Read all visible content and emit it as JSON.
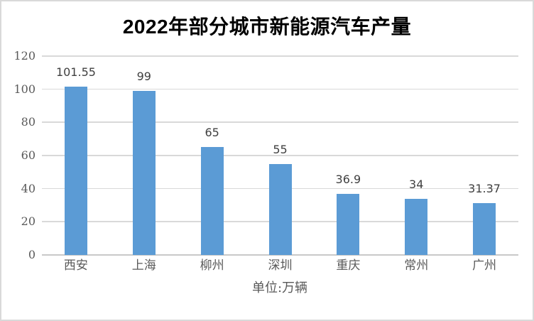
{
  "chart_data": {
    "type": "bar",
    "title": "2022年部分城市新能源汽车产量",
    "unit_label": "单位:万辆",
    "categories": [
      "西安",
      "上海",
      "柳州",
      "深圳",
      "重庆",
      "常州",
      "广州"
    ],
    "values": [
      101.55,
      99,
      65,
      55,
      36.9,
      34,
      31.37
    ],
    "data_labels": [
      "101.55",
      "99",
      "65",
      "55",
      "36.9",
      "34",
      "31.37"
    ],
    "y_ticks": [
      0,
      20,
      40,
      60,
      80,
      100,
      120
    ],
    "ylim": [
      0,
      120
    ],
    "xlabel": "",
    "ylabel": "",
    "grid": "horizontal gridlines on",
    "legend": "none",
    "colors": {
      "bar": "#5b9bd5",
      "gridline": "#d9d9d9",
      "axis_text": "#595959",
      "data_label_text": "#404040",
      "title_text": "#000000",
      "frame_border": "#d9d9d9",
      "background": "#ffffff"
    }
  }
}
